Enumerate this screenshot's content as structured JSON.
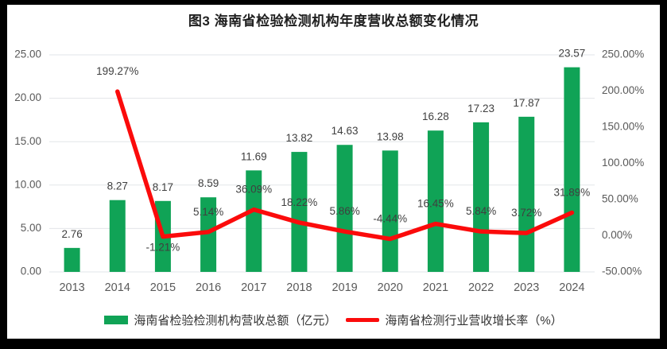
{
  "title": "图3 海南省检验检测机构年度营收总额变化情况",
  "chart_data": {
    "type": "bar+line combo",
    "title": "图3 海南省检验检测机构年度营收总额变化情况",
    "categories": [
      "2013",
      "2014",
      "2015",
      "2016",
      "2017",
      "2018",
      "2019",
      "2020",
      "2021",
      "2022",
      "2023",
      "2024"
    ],
    "series": [
      {
        "name": "海南省检验检测机构营收总额（亿元）",
        "type": "bar",
        "axis": "left",
        "color": "#10A356",
        "values": [
          2.76,
          8.27,
          8.17,
          8.59,
          11.69,
          13.82,
          14.63,
          13.98,
          16.28,
          17.23,
          17.87,
          23.57
        ]
      },
      {
        "name": "海南省检测行业营收增长率（%）",
        "type": "line",
        "axis": "right",
        "color": "#FB0B0B",
        "values": [
          null,
          199.27,
          -1.21,
          5.14,
          36.09,
          18.22,
          5.86,
          -4.44,
          16.45,
          5.84,
          3.72,
          31.89
        ],
        "label_positions": [
          null,
          "above",
          "below",
          "above",
          "above",
          "above",
          "above",
          "above",
          "above",
          "above",
          "above",
          "above"
        ]
      }
    ],
    "left_axis": {
      "min": 0,
      "max": 25,
      "step": 5,
      "tick_labels": [
        "25.00",
        "20.00",
        "15.00",
        "10.00",
        "5.00",
        "0.00"
      ]
    },
    "right_axis": {
      "min": -50,
      "max": 250,
      "step": 50,
      "tick_labels": [
        "250.00%",
        "200.00%",
        "150.00%",
        "100.00%",
        "50.00%",
        "0.00%",
        "-50.00%"
      ]
    },
    "grid": true,
    "legend_position": "bottom",
    "colors": {
      "grid_line": "#E2E5E8",
      "axis_text": "#595959",
      "data_label_text": "#3F3F3F",
      "title_text": "#1f1f1f",
      "plot_background": "#ffffff",
      "frame_background": "#000000"
    }
  }
}
